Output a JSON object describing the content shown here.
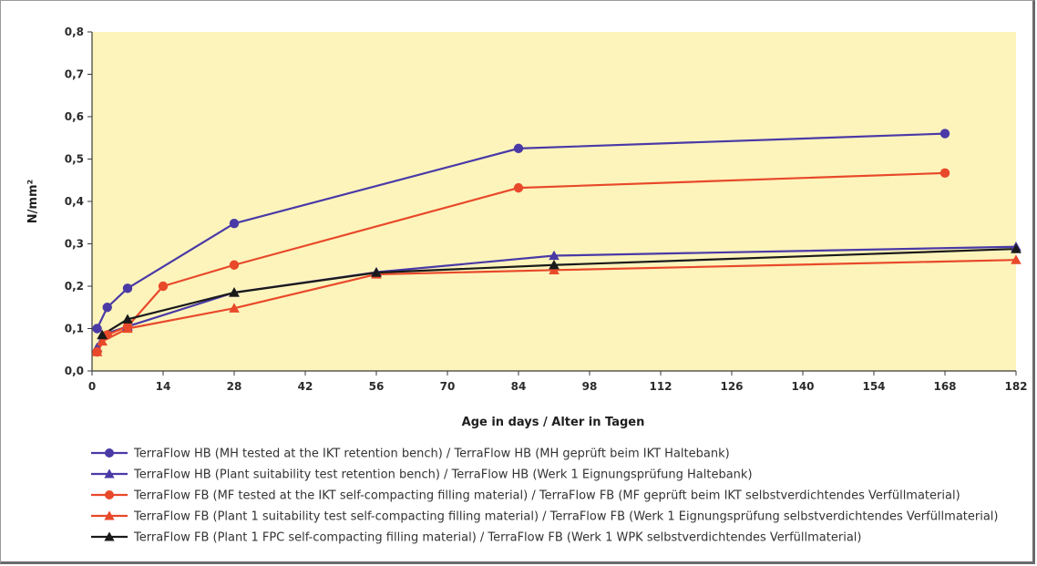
{
  "chart_data": {
    "type": "line",
    "xlabel": "Age in days / Alter in Tagen",
    "ylabel": "N/mm²",
    "xlim": [
      0,
      182
    ],
    "ylim": [
      0,
      0.8
    ],
    "x_ticks": [
      0,
      14,
      28,
      42,
      56,
      70,
      84,
      98,
      112,
      126,
      140,
      154,
      168,
      182
    ],
    "y_ticks": [
      0,
      0.1,
      0.2,
      0.3,
      0.4,
      0.5,
      0.6,
      0.7,
      0.8
    ],
    "y_tick_labels": [
      "0,0",
      "0,1",
      "0,2",
      "0,3",
      "0,4",
      "0,5",
      "0,6",
      "0,7",
      "0,8"
    ],
    "grid": false,
    "plot_background": "#fdf4bc",
    "legend_position": "bottom",
    "series": [
      {
        "name": "TerraFlow HB (MH tested at the IKT retention bench) / TerraFlow HB (MH geprüft beim IKT Haltebank)",
        "color": "#4a3aa6",
        "marker": "circle",
        "x": [
          1,
          3,
          7,
          28,
          84,
          168
        ],
        "y": [
          0.1,
          0.15,
          0.195,
          0.348,
          0.525,
          0.56
        ]
      },
      {
        "name": "TerraFlow HB (Plant suitability test retention bench) / TerraFlow HB (Werk 1 Eignungsprüfung Haltebank)",
        "color": "#4a3aa6",
        "marker": "triangle",
        "x": [
          1,
          2,
          7,
          28,
          56,
          91,
          182
        ],
        "y": [
          0.055,
          0.085,
          0.105,
          0.185,
          0.233,
          0.272,
          0.293
        ]
      },
      {
        "name": "TerraFlow FB (MF tested at the IKT self-compacting filling material) / TerraFlow FB (MF geprüft beim IKT selbstverdichtendes Verfüllmaterial)",
        "color": "#e8492a",
        "marker": "circle",
        "x": [
          1,
          3,
          7,
          14,
          28,
          84,
          168
        ],
        "y": [
          0.045,
          0.085,
          0.105,
          0.2,
          0.25,
          0.432,
          0.467
        ]
      },
      {
        "name": "TerraFlow FB (Plant 1 suitability test self-compacting filling material) / TerraFlow FB (Werk 1 Eignungsprüfung selbstverdichtendes Verfüllmaterial)",
        "color": "#e8492a",
        "marker": "triangle",
        "x": [
          1,
          2,
          7,
          28,
          56,
          91,
          182
        ],
        "y": [
          0.045,
          0.07,
          0.1,
          0.148,
          0.228,
          0.238,
          0.262
        ]
      },
      {
        "name": "TerraFlow FB (Plant 1 FPC self-compacting filling material) / TerraFlow FB (Werk 1 WPK selbstverdichtendes Verfüllmaterial)",
        "color": "#1a1a1a",
        "marker": "triangle",
        "x": [
          2,
          7,
          28,
          56,
          91,
          182
        ],
        "y": [
          0.085,
          0.122,
          0.185,
          0.232,
          0.25,
          0.288
        ]
      }
    ]
  }
}
